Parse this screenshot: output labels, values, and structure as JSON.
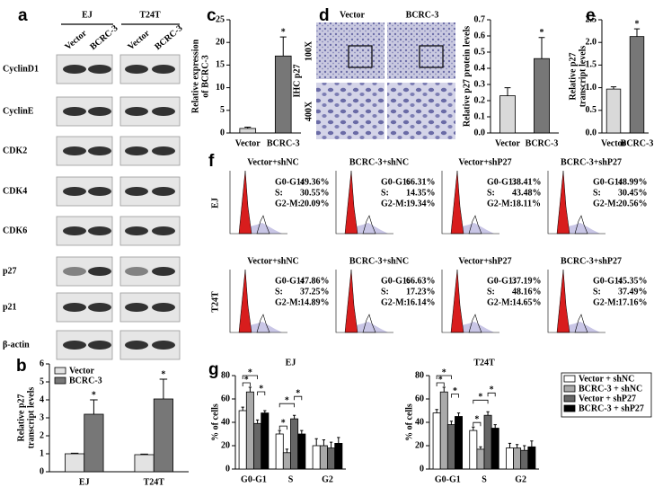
{
  "panel_labels": [
    "a",
    "b",
    "c",
    "d",
    "e",
    "f",
    "g"
  ],
  "western_blot": {
    "cell_lines": [
      "EJ",
      "T24T"
    ],
    "conditions": [
      "Vector",
      "BCRC-3"
    ],
    "proteins": [
      "CyclinD1",
      "CyclinE",
      "CDK2",
      "CDK4",
      "CDK6",
      "p27",
      "p21",
      "β-actin"
    ]
  },
  "ihc": {
    "title": "IHC p27",
    "conditions": [
      "Vector",
      "BCRC-3"
    ],
    "magnifications": [
      "100X",
      "400X"
    ]
  },
  "flow_cytometry": {
    "rows": [
      "EJ",
      "T24T"
    ],
    "columns": [
      "Vector+shNC",
      "BCRC-3+shNC",
      "Vector+shP27",
      "BCRC-3+shP27"
    ],
    "phase_labels": [
      "G0-G1:",
      "S:",
      "G2-M:"
    ],
    "values": [
      [
        [
          "49.36%",
          "30.55%",
          "20.09%"
        ],
        [
          "66.31%",
          "14.35%",
          "19.34%"
        ],
        [
          "38.41%",
          "43.48%",
          "18.11%"
        ],
        [
          "48.99%",
          "30.45%",
          "20.56%"
        ]
      ],
      [
        [
          "47.86%",
          "37.25%",
          "14.89%"
        ],
        [
          "66.63%",
          "17.23%",
          "16.14%"
        ],
        [
          "37.19%",
          "48.16%",
          "14.65%"
        ],
        [
          "45.35%",
          "37.49%",
          "17.16%"
        ]
      ]
    ]
  },
  "chart_data": [
    {
      "type": "bar",
      "ylabel": [
        "Relative p27",
        "transcript levels"
      ],
      "categories": [
        "EJ",
        "T24T"
      ],
      "series": [
        {
          "name": "Vector",
          "color": "#e3e3e3",
          "values": [
            1.0,
            0.95
          ],
          "errors": [
            0.03,
            0.03
          ]
        },
        {
          "name": "BCRC-3",
          "color": "#777777",
          "values": [
            3.2,
            4.05
          ],
          "errors": [
            0.8,
            1.1
          ],
          "annotations": [
            "*",
            "*"
          ]
        }
      ],
      "ylim": [
        0,
        6
      ],
      "yticks": [
        0,
        1,
        2,
        3,
        4,
        5,
        6
      ],
      "legend": "top-left"
    },
    {
      "type": "bar",
      "ylabel": [
        "Relative expression",
        "of BCRC-3"
      ],
      "categories": [
        "Vector",
        "BCRC-3"
      ],
      "series": [
        {
          "colors": [
            "#d9d9d9",
            "#777777"
          ],
          "values": [
            1.0,
            17.0
          ],
          "errors": [
            0.3,
            4.2
          ],
          "annotations": [
            null,
            "*"
          ]
        }
      ],
      "ylim": [
        0,
        25
      ],
      "yticks": [
        0,
        5,
        10,
        15,
        20,
        25
      ]
    },
    {
      "type": "bar",
      "ylabel": [
        "Relative p27 protein levels"
      ],
      "categories": [
        "Vector",
        "BCRC-3"
      ],
      "series": [
        {
          "colors": [
            "#d9d9d9",
            "#777777"
          ],
          "values": [
            0.23,
            0.46
          ],
          "errors": [
            0.05,
            0.13
          ],
          "annotations": [
            null,
            "*"
          ]
        }
      ],
      "ylim": [
        0,
        0.7
      ],
      "yticks": [
        {
          "value": 0,
          "label": "0.0"
        },
        0.1,
        0.2,
        0.3,
        0.4,
        0.5,
        0.6,
        0.7
      ]
    },
    {
      "type": "bar",
      "ylabel": [
        "Relative p27",
        "transcript levels"
      ],
      "categories": [
        "Vector",
        "BCRC-3"
      ],
      "series": [
        {
          "colors": [
            "#d9d9d9",
            "#777777"
          ],
          "values": [
            0.97,
            2.13
          ],
          "errors": [
            0.05,
            0.17
          ],
          "annotations": [
            null,
            "*"
          ]
        }
      ],
      "ylim": [
        0,
        2.5
      ],
      "yticks": [
        {
          "value": 0,
          "label": "0.0"
        },
        0.5,
        {
          "value": 1,
          "label": "1.0"
        },
        1.5,
        {
          "value": 2,
          "label": "2.0"
        },
        2.5
      ]
    },
    {
      "type": "bar",
      "title": "EJ",
      "ylabel": [
        "% of cells"
      ],
      "categories": [
        "G0-G1",
        "S",
        "G2"
      ],
      "series": [
        {
          "color": "#ffffff",
          "values": [
            50,
            30,
            20
          ],
          "errors": [
            3,
            3,
            6
          ]
        },
        {
          "color": "#aaaaaa",
          "values": [
            66,
            14,
            20
          ],
          "errors": [
            4,
            3,
            5
          ]
        },
        {
          "color": "#666666",
          "values": [
            39,
            43,
            18
          ],
          "errors": [
            3,
            3,
            5
          ]
        },
        {
          "color": "#000000",
          "values": [
            48,
            30,
            22
          ],
          "errors": [
            2,
            3,
            5
          ]
        }
      ],
      "comparisons": [
        {
          "category": 0,
          "from": 0,
          "to": 1,
          "label": "*"
        },
        {
          "category": 0,
          "from": 0,
          "to": 2,
          "label": "*"
        },
        {
          "category": 0,
          "from": 2,
          "to": 3,
          "label": "*"
        },
        {
          "category": 1,
          "from": 0,
          "to": 1,
          "label": "*"
        },
        {
          "category": 1,
          "from": 0,
          "to": 2,
          "label": "*"
        },
        {
          "category": 1,
          "from": 2,
          "to": 3,
          "label": "*"
        }
      ],
      "ylim": [
        0,
        80
      ],
      "yticks": [
        0,
        20,
        40,
        60,
        80
      ]
    },
    {
      "type": "bar",
      "title": "T24T",
      "ylabel": [
        "% of cells"
      ],
      "categories": [
        "G0-G1",
        "S",
        "G2"
      ],
      "series": [
        {
          "name": "Vector + shNC",
          "color": "#ffffff",
          "values": [
            48,
            33,
            18
          ],
          "errors": [
            3,
            3,
            4
          ]
        },
        {
          "name": "BCRC-3 + shNC",
          "color": "#aaaaaa",
          "values": [
            66,
            17,
            18
          ],
          "errors": [
            4,
            2,
            3
          ]
        },
        {
          "name": "Vector + shP27",
          "color": "#666666",
          "values": [
            38,
            46,
            16
          ],
          "errors": [
            3,
            3,
            4
          ]
        },
        {
          "name": "BCRC-3 + shP27",
          "color": "#000000",
          "values": [
            45,
            35,
            19
          ],
          "errors": [
            3,
            3,
            5
          ]
        }
      ],
      "comparisons": [
        {
          "category": 0,
          "from": 0,
          "to": 1,
          "label": "*"
        },
        {
          "category": 0,
          "from": 0,
          "to": 2,
          "label": "*"
        },
        {
          "category": 0,
          "from": 2,
          "to": 3,
          "label": "*"
        },
        {
          "category": 1,
          "from": 0,
          "to": 1,
          "label": "*"
        },
        {
          "category": 1,
          "from": 0,
          "to": 2,
          "label": "*"
        },
        {
          "category": 1,
          "from": 2,
          "to": 3,
          "label": "*"
        }
      ],
      "ylim": [
        0,
        80
      ],
      "yticks": [
        0,
        20,
        40,
        60,
        80
      ],
      "legend": "right"
    }
  ]
}
